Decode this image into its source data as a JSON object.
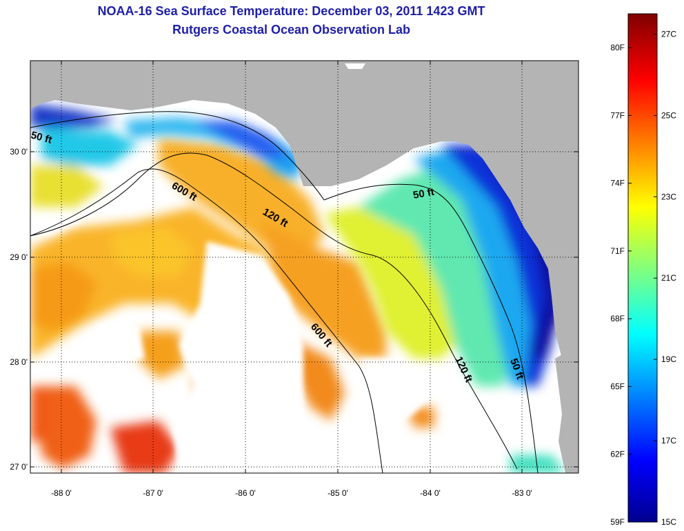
{
  "title": "NOAA-16 Sea Surface Temperature:  December 03, 2011 1423 GMT",
  "subtitle": "Rutgers Coastal Ocean Observation Lab",
  "lon_ticks": [
    "-88 0'",
    "-87 0'",
    "-86 0'",
    "-85 0'",
    "-84 0'",
    "-83 0'"
  ],
  "lat_ticks": [
    "30 0'",
    "29 0'",
    "28 0'",
    "27 0'"
  ],
  "contour_labels": [
    "50 ft",
    "600 ft",
    "120 ft",
    "50 ft",
    "600 ft",
    "120 ft",
    "50 ft"
  ],
  "colorbar": {
    "fahrenheit": [
      "80F",
      "77F",
      "74F",
      "71F",
      "68F",
      "65F",
      "62F",
      "59F"
    ],
    "celsius": [
      "27C",
      "25C",
      "23C",
      "21C",
      "19C",
      "17C",
      "15C"
    ],
    "range_f": [
      59,
      81.5
    ],
    "range_c": [
      15,
      27.5
    ],
    "colors": [
      "#00008f",
      "#0000ff",
      "#00ffff",
      "#ffff00",
      "#ff0000",
      "#800000"
    ]
  },
  "colors": {
    "land": "#b4b4b4",
    "title": "#1e1ea8",
    "no_data": "#ffffff"
  }
}
